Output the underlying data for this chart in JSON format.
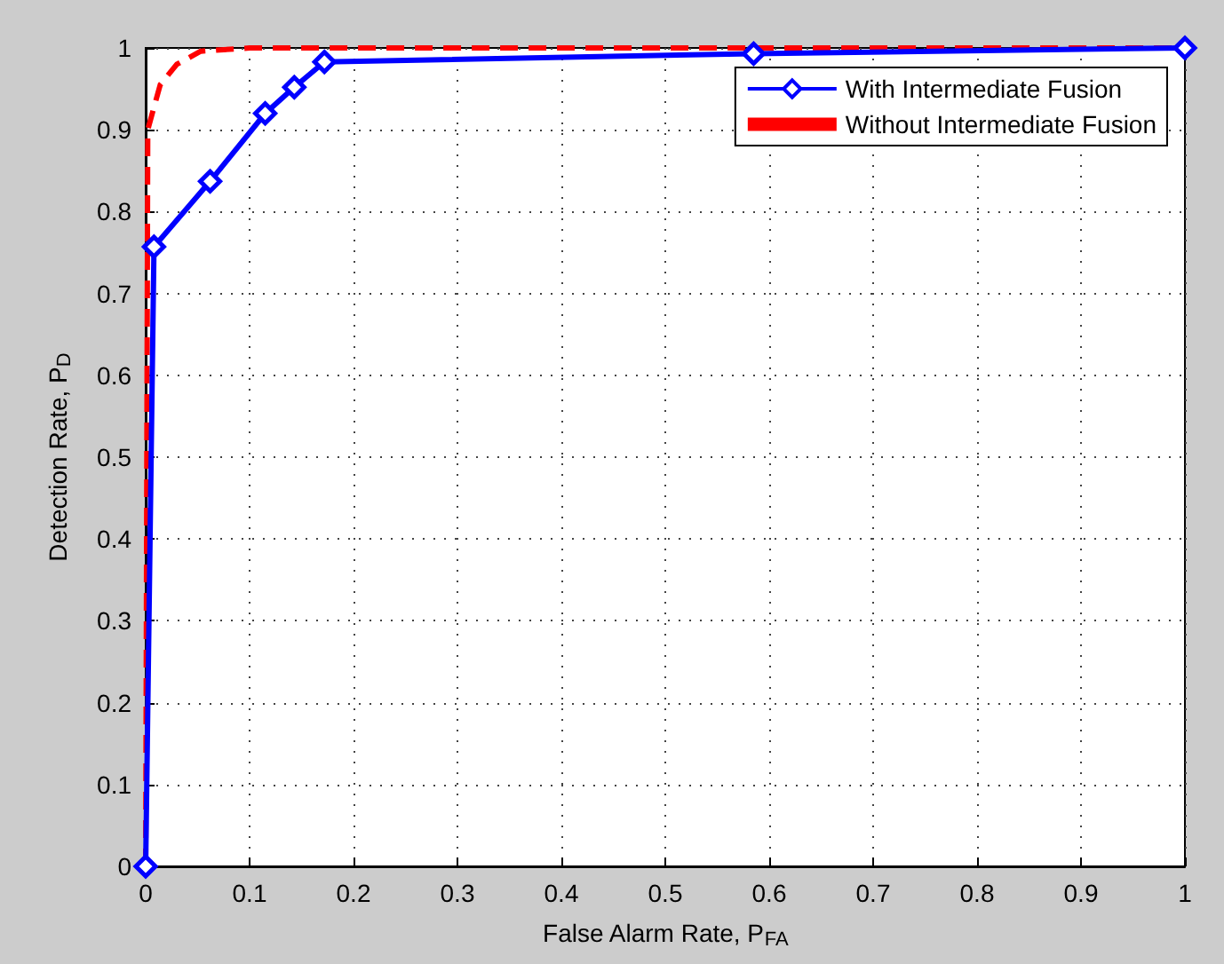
{
  "chart_data": {
    "type": "line",
    "xlabel": "False Alarm Rate, P$_{FA}$",
    "ylabel": "Detection Rate, P$_{D}$",
    "xlim": [
      0,
      1
    ],
    "ylim": [
      0,
      1
    ],
    "xticks": [
      0,
      0.1,
      0.2,
      0.3,
      0.4,
      0.5,
      0.6,
      0.7,
      0.8,
      0.9,
      1
    ],
    "yticks": [
      0,
      0.1,
      0.2,
      0.3,
      0.4,
      0.5,
      0.6,
      0.7,
      0.8,
      0.9,
      1
    ],
    "grid": true,
    "legend": "top right",
    "series": [
      {
        "name": "With Intermediate Fusion",
        "color": "#0000ff",
        "marker": "diamond",
        "line_style": "solid",
        "x": [
          0,
          0.008,
          0.062,
          0.115,
          0.143,
          0.172,
          0.585,
          1
        ],
        "values": [
          0,
          0.757,
          0.837,
          0.92,
          0.952,
          0.983,
          0.993,
          1
        ]
      },
      {
        "name": "Without Intermediate Fusion",
        "color": "#ff0000",
        "marker": "none",
        "line_style": "dashed",
        "x": [
          0,
          0.002,
          0.014,
          0.03,
          0.053,
          0.1,
          1
        ],
        "values": [
          0,
          0.9,
          0.955,
          0.98,
          0.996,
          1,
          1
        ]
      }
    ]
  }
}
